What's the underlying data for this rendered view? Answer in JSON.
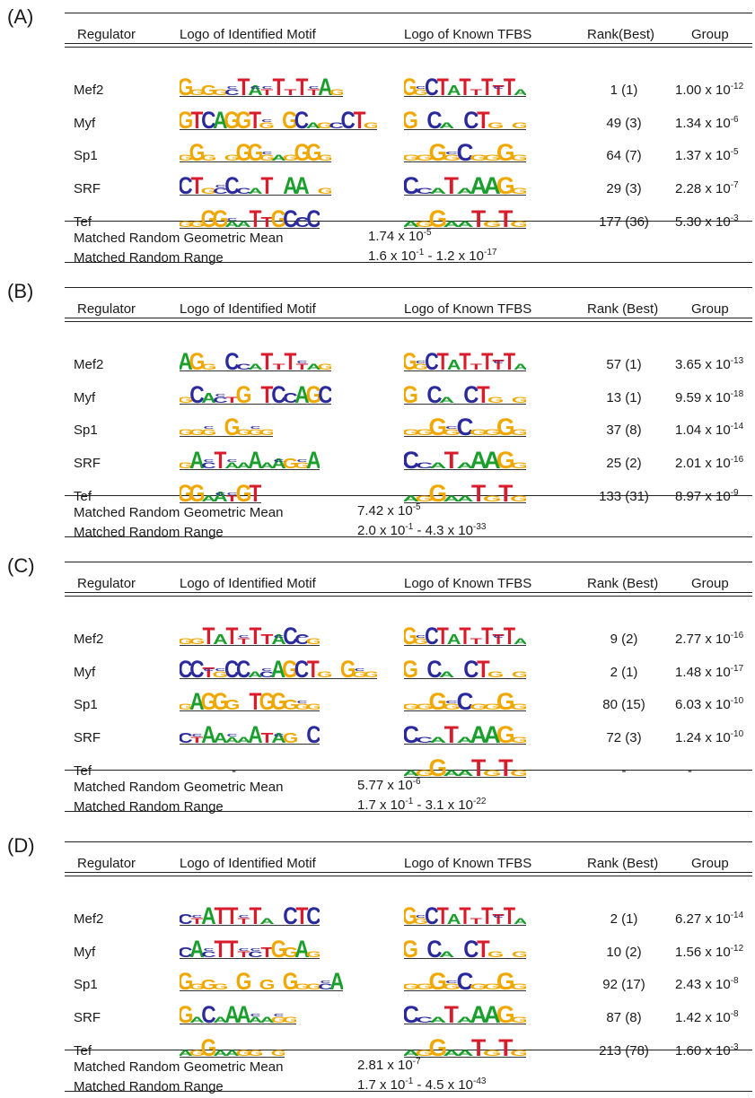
{
  "headers": {
    "regulator": "Regulator",
    "identified": "Logo of Identified Motif",
    "known": "Logo of Known TFBS",
    "rank_a": "Rank(Best)",
    "rank": "Rank (Best)",
    "group": "Group"
  },
  "footer_labels": {
    "mean": "Matched Random Geometric Mean",
    "range": "Matched Random Range"
  },
  "panels": [
    {
      "label": "(A)",
      "rows": [
        {
          "reg": "Mef2",
          "motif": "GGGGCTATTTTTAG",
          "known": "GGCTATTTTTA",
          "rank": "1 (1)",
          "gm": "1.00 x 10",
          "ge": "-12"
        },
        {
          "reg": "Myf",
          "motif": "GTCAGGTG GCAGCCTG",
          "known": "G CA CTG G",
          "rank": "49 (3)",
          "gm": "1.34 x 10",
          "ge": "-6"
        },
        {
          "reg": "Sp1",
          "motif": "GGG GGGGAGGGG",
          "known": "GGGGCGGGG",
          "rank": "64 (7)",
          "gm": "1.37 x 10",
          "ge": "-5"
        },
        {
          "reg": "SRF",
          "motif": "CTGCCCAT AA G",
          "known": "CCATAAAGG",
          "rank": "29 (3)",
          "gm": "2.28 x 10",
          "ge": "-7"
        },
        {
          "reg": "Tef",
          "motif": "GGGGAATTGCCC",
          "known": "AGGAATGTG",
          "rank": "177 (36)",
          "gm": "5.30 x 10",
          "ge": "-3"
        }
      ],
      "mean": "1.74 x 10",
      "mean_e": "-5",
      "range_a": "1.6 x 10",
      "range_ae": "-1",
      "range_b": " - 1.2 x 10",
      "range_be": "-17"
    },
    {
      "label": "(B)",
      "rows": [
        {
          "reg": "Mef2",
          "motif": "AGG CCATTTTAG",
          "known": "GGCTATTTTTA",
          "rank": "57 (1)",
          "gm": "3.65 x 10",
          "ge": "-13"
        },
        {
          "reg": "Myf",
          "motif": "GCACTG TCCAGC",
          "known": "G CA CTG G",
          "rank": "13 (1)",
          "gm": "9.59 x 10",
          "ge": "-18"
        },
        {
          "reg": "Sp1",
          "motif": "GGG GGGG",
          "known": "GGGGCGGGG",
          "rank": "37 (8)",
          "gm": "1.04 x 10",
          "ge": "-14"
        },
        {
          "reg": "SRF",
          "motif": "GACTAAAAAGGA",
          "known": "CCATAAAGG",
          "rank": "25 (2)",
          "gm": "2.01 x 10",
          "ge": "-16"
        },
        {
          "reg": "Tef",
          "motif": "GGAATGT",
          "known": "AGGAATGTG",
          "rank": "133 (31)",
          "gm": "8.97 x 10",
          "ge": "-9"
        }
      ],
      "mean": "7.42 x 10",
      "mean_e": "-5",
      "range_a": "2.0 x 10",
      "range_ae": "-1",
      "range_b": " - 4.3 x 10",
      "range_be": "-33"
    },
    {
      "label": "(C)",
      "rows": [
        {
          "reg": "Mef2",
          "motif": "GGTATTTTACCG",
          "known": "GGCTATTTTTA",
          "rank": "9 (2)",
          "gm": "2.77 x 10",
          "ge": "-16"
        },
        {
          "reg": "Myf",
          "motif": "CCTGCCACAGCTG GGG",
          "known": "G CA CTG G",
          "rank": "2 (1)",
          "gm": "1.48 x 10",
          "ge": "-17"
        },
        {
          "reg": "Sp1",
          "motif": "GAGGG TGGGGG",
          "known": "GGGGCGGGG",
          "rank": "80 (15)",
          "gm": "6.03 x 10",
          "ge": "-10"
        },
        {
          "reg": "SRF",
          "motif": "CTAAAAATAG C",
          "known": "CCATAAAGG",
          "rank": "72 (3)",
          "gm": "1.24 x 10",
          "ge": "-10"
        },
        {
          "reg": "Tef",
          "motif": "-",
          "known": "AGGAATGTG",
          "rank": "-",
          "gm": "-",
          "ge": ""
        }
      ],
      "mean": "5.77 x 10",
      "mean_e": "-6",
      "range_a": "1.7 x 10",
      "range_ae": "-1",
      "range_b": " - 3.1 x 10",
      "range_be": "-22"
    },
    {
      "label": "(D)",
      "rows": [
        {
          "reg": "Mef2",
          "motif": "CTATTTTA CTC",
          "known": "GGCTATTTTTA",
          "rank": "2 (1)",
          "gm": "6.27 x 10",
          "ge": "-14"
        },
        {
          "reg": "Myf",
          "motif": "CACTTTCTGGAG",
          "known": "G CA CTG G",
          "rank": "10 (2)",
          "gm": "1.56 x 10",
          "ge": "-12"
        },
        {
          "reg": "Sp1",
          "motif": "GGGG G G GGGCA",
          "known": "GGGGCGGGG",
          "rank": "92 (17)",
          "gm": "2.43 x 10",
          "ge": "-8"
        },
        {
          "reg": "SRF",
          "motif": "GACAAAAAGG",
          "known": "CCATAAAGG",
          "rank": "87 (8)",
          "gm": "1.42 x 10",
          "ge": "-8"
        },
        {
          "reg": "Tef",
          "motif": "AGGAAGG G",
          "known": "AGGAATGTG",
          "rank": "213 (78)",
          "gm": "1.60 x 10",
          "ge": "-3"
        }
      ],
      "mean": "2.81 x 10",
      "mean_e": "-7",
      "range_a": "1.7 x 10",
      "range_ae": "-1",
      "range_b": " - 4.5 x 10",
      "range_be": "-43"
    }
  ],
  "colors": {
    "A": "#1a9e2c",
    "C": "#2a2a9c",
    "G": "#f0a800",
    "T": "#d81c2c"
  }
}
